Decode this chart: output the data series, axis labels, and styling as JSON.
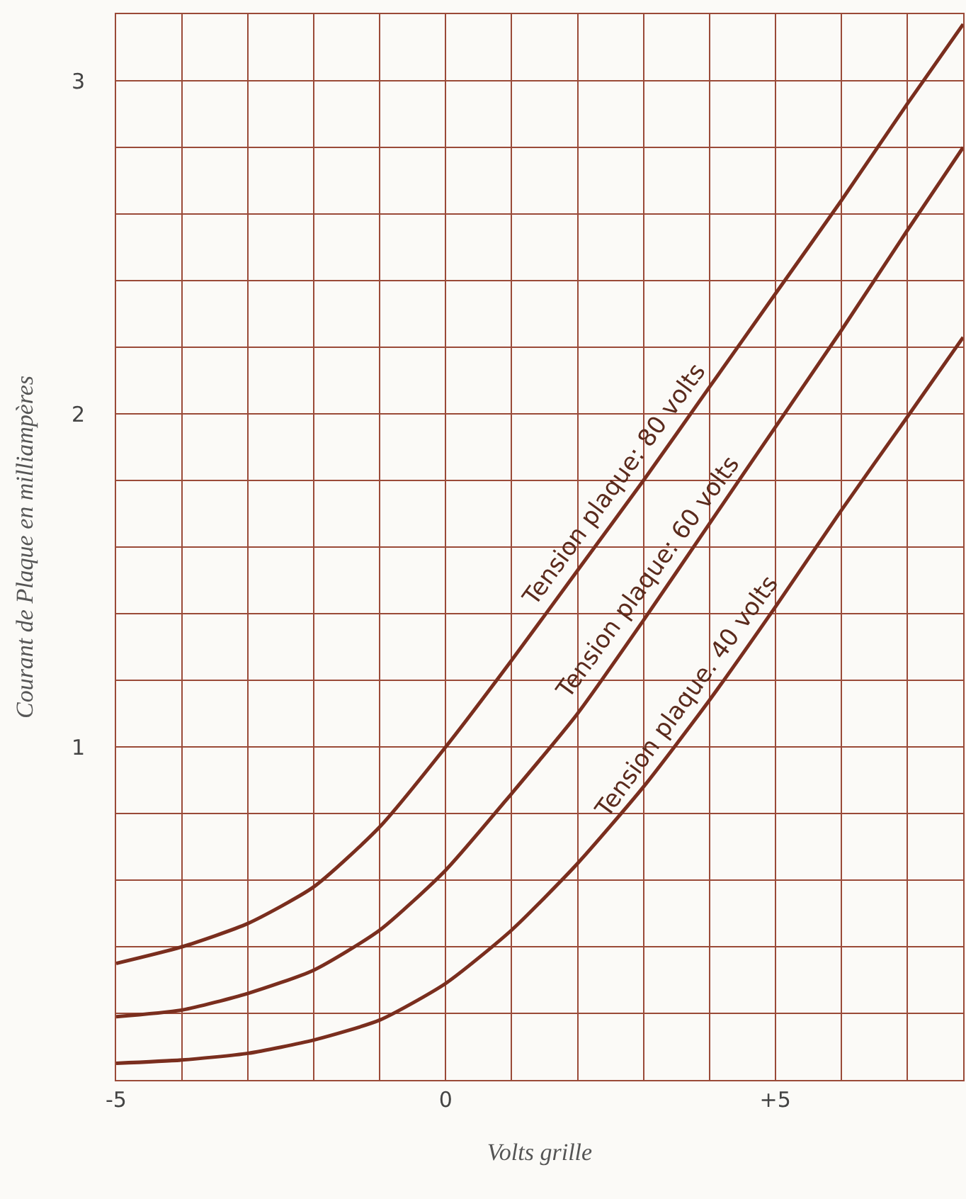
{
  "chart_data": {
    "type": "line",
    "xlabel": "Volts grille",
    "ylabel": "Courant de Plaque en milliampères",
    "x": [
      -5,
      -4,
      -3,
      -2,
      -1,
      0,
      1,
      2,
      3,
      4,
      5,
      6,
      7,
      7.85
    ],
    "series": [
      {
        "color": "#7a2e1e",
        "values": [
          0.35,
          0.4,
          0.47,
          0.58,
          0.76,
          1.0,
          1.26,
          1.53,
          1.8,
          2.08,
          2.36,
          2.64,
          2.93,
          3.17
        ]
      },
      {
        "color": "#7a2e1e",
        "values": [
          0.19,
          0.21,
          0.26,
          0.33,
          0.45,
          0.63,
          0.86,
          1.1,
          1.38,
          1.67,
          1.96,
          2.25,
          2.55,
          2.8
        ]
      },
      {
        "color": "#7a2e1e",
        "values": [
          0.05,
          0.06,
          0.08,
          0.12,
          0.18,
          0.29,
          0.45,
          0.65,
          0.88,
          1.14,
          1.42,
          1.71,
          1.99,
          2.23
        ]
      }
    ],
    "annotations": [
      {
        "text": "Tension plaque: 80 volts",
        "x": 2.8,
        "y": 1.75
      },
      {
        "text": "Tension plaque: 60 volts",
        "x": 3.3,
        "y": 1.47
      },
      {
        "text": "Tension plaque. 40 volts",
        "x": 3.9,
        "y": 1.11
      }
    ],
    "xlim": [
      -5,
      7.85
    ],
    "ylim": [
      0,
      3.2
    ],
    "xticks": [
      {
        "value": -5,
        "label": "-5"
      },
      {
        "value": -4,
        "label": null
      },
      {
        "value": -3,
        "label": null
      },
      {
        "value": -2,
        "label": null
      },
      {
        "value": -1,
        "label": null
      },
      0,
      {
        "value": 1,
        "label": null
      },
      {
        "value": 2,
        "label": null
      },
      {
        "value": 3,
        "label": null
      },
      {
        "value": 4,
        "label": null
      },
      {
        "value": 5,
        "label": "+5"
      },
      {
        "value": 6,
        "label": null
      },
      {
        "value": 7,
        "label": null
      }
    ],
    "yticks": [
      {
        "value": 0.2,
        "label": null
      },
      {
        "value": 0.4,
        "label": null
      },
      {
        "value": 0.6,
        "label": null
      },
      {
        "value": 0.8,
        "label": null
      },
      1,
      {
        "value": 1.2,
        "label": null
      },
      {
        "value": 1.4,
        "label": null
      },
      {
        "value": 1.6,
        "label": null
      },
      {
        "value": 1.8,
        "label": null
      },
      2,
      {
        "value": 2.2,
        "label": null
      },
      {
        "value": 2.4,
        "label": null
      },
      {
        "value": 2.6,
        "label": null
      },
      {
        "value": 2.8,
        "label": null
      },
      3
    ],
    "grid": true,
    "marker": "none",
    "line_style": "solid"
  }
}
